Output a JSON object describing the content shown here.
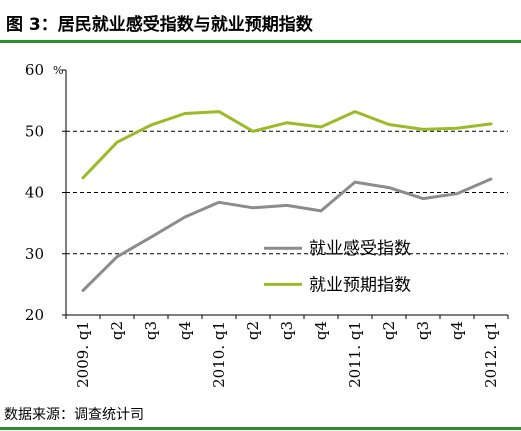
{
  "figure": {
    "title": "图 3：居民就业感受指数与就业预期指数",
    "source": "数据来源：调查统计司"
  },
  "colors": {
    "rule": "#2e8b2e",
    "series_perceived": "#8c8c8c",
    "series_expected": "#9bbb26"
  },
  "chart_data": {
    "type": "line",
    "title": "",
    "xlabel": "",
    "ylabel": "",
    "y_unit": "%",
    "ylim": [
      20,
      60
    ],
    "yticks": [
      20,
      30,
      40,
      50,
      60
    ],
    "grid": "dashed horizontal at 30, 40, 50",
    "legend": "lower-right",
    "categories": [
      "2009. q1",
      "q2",
      "q3",
      "q4",
      "2010. q1",
      "q2",
      "q3",
      "q4",
      "2011. q1",
      "q2",
      "q3",
      "q4",
      "2012. q1"
    ],
    "series": [
      {
        "name": "就业感受指数",
        "values": [
          24.0,
          29.5,
          32.7,
          36.0,
          38.4,
          37.5,
          37.9,
          37.0,
          41.7,
          40.8,
          39.0,
          39.8,
          42.2
        ]
      },
      {
        "name": "就业预期指数",
        "values": [
          42.4,
          48.2,
          51.0,
          52.9,
          53.2,
          50.0,
          51.4,
          50.7,
          53.2,
          51.1,
          50.3,
          50.5,
          51.2
        ]
      }
    ]
  }
}
